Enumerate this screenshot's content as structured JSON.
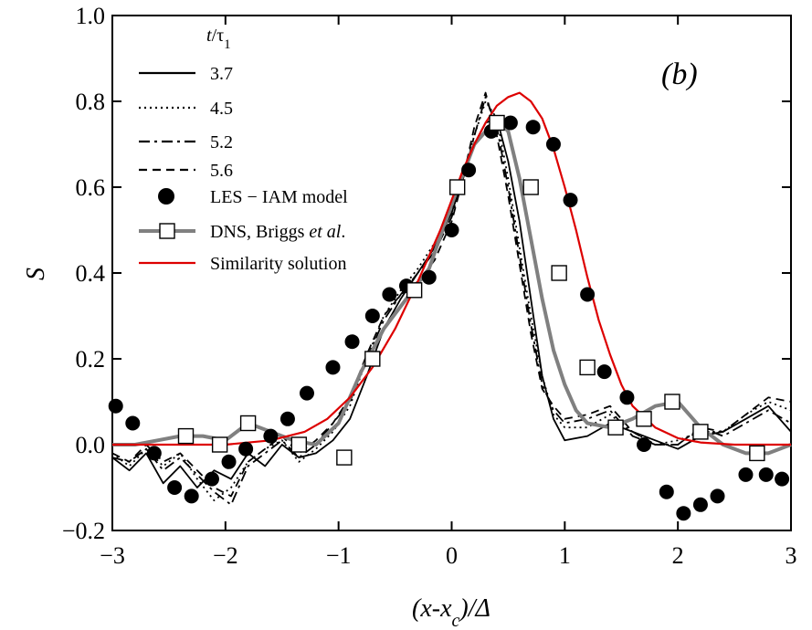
{
  "chart_data": {
    "type": "line",
    "panel_label": "(b)",
    "xlabel": "(x-x_c)/Δ",
    "ylabel": "S",
    "xlim": [
      -3,
      3
    ],
    "ylim": [
      -0.2,
      1.0
    ],
    "x_ticks": [
      -3,
      -2,
      -1,
      0,
      1,
      2,
      3
    ],
    "x_tick_labels": [
      "−3",
      "−2",
      "−1",
      "0",
      "1",
      "2",
      "3"
    ],
    "y_ticks": [
      -0.2,
      0.0,
      0.2,
      0.4,
      0.6,
      0.8,
      1.0
    ],
    "y_tick_labels": [
      "−0.2",
      "0.0",
      "0.2",
      "0.4",
      "0.6",
      "0.8",
      "1.0"
    ],
    "grid": false,
    "legend_title": "t/τ1",
    "legend_position": "top-left",
    "series": [
      {
        "name": "3.7",
        "style": "solid",
        "color": "#000000",
        "x": [
          -3.0,
          -2.85,
          -2.7,
          -2.55,
          -2.4,
          -2.25,
          -2.1,
          -1.95,
          -1.8,
          -1.65,
          -1.5,
          -1.35,
          -1.2,
          -1.05,
          -0.9,
          -0.75,
          -0.6,
          -0.45,
          -0.3,
          -0.15,
          0.0,
          0.1,
          0.2,
          0.3,
          0.4,
          0.5,
          0.6,
          0.7,
          0.8,
          0.9,
          1.0,
          1.2,
          1.4,
          1.6,
          1.8,
          2.0,
          2.2,
          2.4,
          2.6,
          2.8,
          3.0
        ],
        "y": [
          -0.03,
          -0.06,
          -0.02,
          -0.09,
          -0.05,
          -0.1,
          -0.06,
          -0.08,
          -0.02,
          -0.05,
          0.0,
          -0.03,
          -0.02,
          0.01,
          0.06,
          0.16,
          0.27,
          0.34,
          0.4,
          0.46,
          0.54,
          0.62,
          0.7,
          0.75,
          0.76,
          0.66,
          0.52,
          0.34,
          0.16,
          0.06,
          0.01,
          0.02,
          0.05,
          0.03,
          0.01,
          -0.01,
          0.02,
          0.03,
          0.06,
          0.09,
          0.03
        ]
      },
      {
        "name": "4.5",
        "style": "dotted",
        "color": "#000000",
        "x": [
          -3.0,
          -2.85,
          -2.7,
          -2.55,
          -2.4,
          -2.25,
          -2.1,
          -1.95,
          -1.8,
          -1.65,
          -1.5,
          -1.35,
          -1.2,
          -1.05,
          -0.9,
          -0.75,
          -0.6,
          -0.45,
          -0.3,
          -0.15,
          0.0,
          0.1,
          0.2,
          0.3,
          0.4,
          0.5,
          0.6,
          0.7,
          0.8,
          0.9,
          1.0,
          1.2,
          1.4,
          1.6,
          1.8,
          2.0,
          2.2,
          2.4,
          2.6,
          2.8,
          3.0
        ],
        "y": [
          -0.02,
          -0.05,
          -0.01,
          -0.05,
          -0.02,
          -0.08,
          -0.13,
          -0.1,
          -0.04,
          -0.01,
          0.01,
          -0.04,
          -0.01,
          0.03,
          0.09,
          0.2,
          0.3,
          0.36,
          0.41,
          0.47,
          0.55,
          0.63,
          0.72,
          0.8,
          0.76,
          0.62,
          0.46,
          0.3,
          0.16,
          0.07,
          0.04,
          0.04,
          0.07,
          0.03,
          0.0,
          0.01,
          0.03,
          0.03,
          0.07,
          0.1,
          0.08
        ]
      },
      {
        "name": "5.2",
        "style": "dashdot",
        "color": "#000000",
        "x": [
          -3.0,
          -2.85,
          -2.7,
          -2.55,
          -2.4,
          -2.25,
          -2.1,
          -1.95,
          -1.8,
          -1.65,
          -1.5,
          -1.35,
          -1.2,
          -1.05,
          -0.9,
          -0.75,
          -0.6,
          -0.45,
          -0.3,
          -0.15,
          0.0,
          0.1,
          0.2,
          0.3,
          0.4,
          0.5,
          0.6,
          0.7,
          0.8,
          0.9,
          1.0,
          1.2,
          1.4,
          1.6,
          1.8,
          2.0,
          2.2,
          2.4,
          2.6,
          2.8,
          3.0
        ],
        "y": [
          -0.03,
          -0.04,
          -0.01,
          -0.06,
          -0.03,
          -0.07,
          -0.11,
          -0.14,
          -0.05,
          -0.02,
          0.01,
          -0.03,
          0.0,
          0.05,
          0.1,
          0.2,
          0.29,
          0.35,
          0.4,
          0.45,
          0.53,
          0.62,
          0.72,
          0.81,
          0.74,
          0.6,
          0.44,
          0.28,
          0.14,
          0.08,
          0.05,
          0.06,
          0.08,
          0.02,
          0.0,
          0.0,
          0.04,
          0.02,
          0.05,
          0.08,
          0.05
        ]
      },
      {
        "name": "5.6",
        "style": "dashed",
        "color": "#000000",
        "x": [
          -3.0,
          -2.85,
          -2.7,
          -2.55,
          -2.4,
          -2.25,
          -2.1,
          -1.95,
          -1.8,
          -1.65,
          -1.5,
          -1.35,
          -1.2,
          -1.05,
          -0.9,
          -0.75,
          -0.6,
          -0.45,
          -0.3,
          -0.15,
          0.0,
          0.1,
          0.2,
          0.3,
          0.4,
          0.5,
          0.6,
          0.7,
          0.8,
          0.9,
          1.0,
          1.2,
          1.4,
          1.6,
          1.8,
          2.0,
          2.2,
          2.4,
          2.6,
          2.8,
          3.0
        ],
        "y": [
          -0.02,
          -0.04,
          0.0,
          -0.04,
          -0.02,
          -0.06,
          -0.1,
          -0.12,
          -0.04,
          -0.01,
          0.02,
          -0.02,
          0.01,
          0.05,
          0.11,
          0.21,
          0.3,
          0.35,
          0.38,
          0.43,
          0.52,
          0.62,
          0.74,
          0.82,
          0.72,
          0.58,
          0.42,
          0.26,
          0.13,
          0.09,
          0.06,
          0.07,
          0.09,
          0.03,
          0.0,
          0.0,
          0.04,
          0.03,
          0.07,
          0.11,
          0.1
        ]
      },
      {
        "name": "LES − IAM model",
        "style": "markers",
        "marker": "filled-circle",
        "color": "#000000",
        "x": [
          -2.97,
          -2.82,
          -2.63,
          -2.45,
          -2.3,
          -2.12,
          -1.97,
          -1.82,
          -1.6,
          -1.45,
          -1.28,
          -1.05,
          -0.88,
          -0.7,
          -0.55,
          -0.4,
          -0.2,
          0.0,
          0.15,
          0.35,
          0.52,
          0.72,
          0.9,
          1.05,
          1.2,
          1.35,
          1.55,
          1.7,
          1.9,
          2.05,
          2.2,
          2.35,
          2.6,
          2.78,
          2.92
        ],
        "y": [
          0.09,
          0.05,
          -0.02,
          -0.1,
          -0.12,
          -0.08,
          -0.04,
          -0.01,
          0.02,
          0.06,
          0.12,
          0.18,
          0.24,
          0.3,
          0.35,
          0.37,
          0.39,
          0.5,
          0.64,
          0.73,
          0.75,
          0.74,
          0.7,
          0.57,
          0.35,
          0.17,
          0.11,
          0.0,
          -0.11,
          -0.16,
          -0.14,
          -0.12,
          -0.07,
          -0.07,
          -0.08
        ]
      },
      {
        "name": "DNS, Briggs et al.",
        "style": "solid-with-open-squares",
        "color": "#808080",
        "x": [
          -3.0,
          -2.8,
          -2.6,
          -2.4,
          -2.2,
          -2.0,
          -1.8,
          -1.6,
          -1.4,
          -1.2,
          -1.0,
          -0.8,
          -0.6,
          -0.4,
          -0.2,
          0.0,
          0.2,
          0.4,
          0.5,
          0.6,
          0.7,
          0.8,
          0.9,
          1.0,
          1.1,
          1.2,
          1.4,
          1.6,
          1.8,
          2.0,
          2.2,
          2.4,
          2.6,
          2.8,
          3.0
        ],
        "y": [
          0.0,
          0.0,
          0.01,
          0.02,
          0.02,
          0.01,
          0.05,
          0.03,
          0.01,
          0.0,
          0.05,
          0.17,
          0.27,
          0.34,
          0.41,
          0.56,
          0.7,
          0.76,
          0.73,
          0.62,
          0.48,
          0.34,
          0.22,
          0.14,
          0.08,
          0.05,
          0.04,
          0.06,
          0.09,
          0.1,
          0.04,
          0.0,
          -0.02,
          -0.02,
          0.0
        ]
      },
      {
        "name": "Similarity solution",
        "style": "solid",
        "color": "#dd0000",
        "x": [
          -3.0,
          -2.5,
          -2.0,
          -1.6,
          -1.3,
          -1.1,
          -0.9,
          -0.7,
          -0.5,
          -0.3,
          -0.1,
          0.0,
          0.1,
          0.2,
          0.3,
          0.4,
          0.5,
          0.6,
          0.7,
          0.8,
          0.9,
          1.0,
          1.1,
          1.2,
          1.3,
          1.4,
          1.5,
          1.6,
          1.8,
          2.0,
          2.2,
          2.5,
          3.0
        ],
        "y": [
          0.0,
          0.0,
          0.0,
          0.01,
          0.03,
          0.06,
          0.11,
          0.18,
          0.27,
          0.38,
          0.5,
          0.57,
          0.64,
          0.7,
          0.75,
          0.79,
          0.81,
          0.82,
          0.8,
          0.76,
          0.69,
          0.6,
          0.5,
          0.39,
          0.29,
          0.21,
          0.14,
          0.09,
          0.04,
          0.015,
          0.005,
          0.0,
          0.0
        ]
      }
    ],
    "marker_series": [
      {
        "name": "DNS, Briggs et al.",
        "marker": "open-square",
        "x": [
          -2.35,
          -2.05,
          -1.8,
          -1.35,
          -0.95,
          -0.7,
          -0.33,
          0.05,
          0.4,
          0.7,
          0.95,
          1.2,
          1.45,
          1.7,
          1.95,
          2.2,
          2.7
        ],
        "y": [
          0.02,
          0.0,
          0.05,
          0.0,
          -0.03,
          0.2,
          0.36,
          0.6,
          0.75,
          0.6,
          0.4,
          0.18,
          0.04,
          0.06,
          0.1,
          0.03,
          -0.02
        ]
      }
    ]
  }
}
